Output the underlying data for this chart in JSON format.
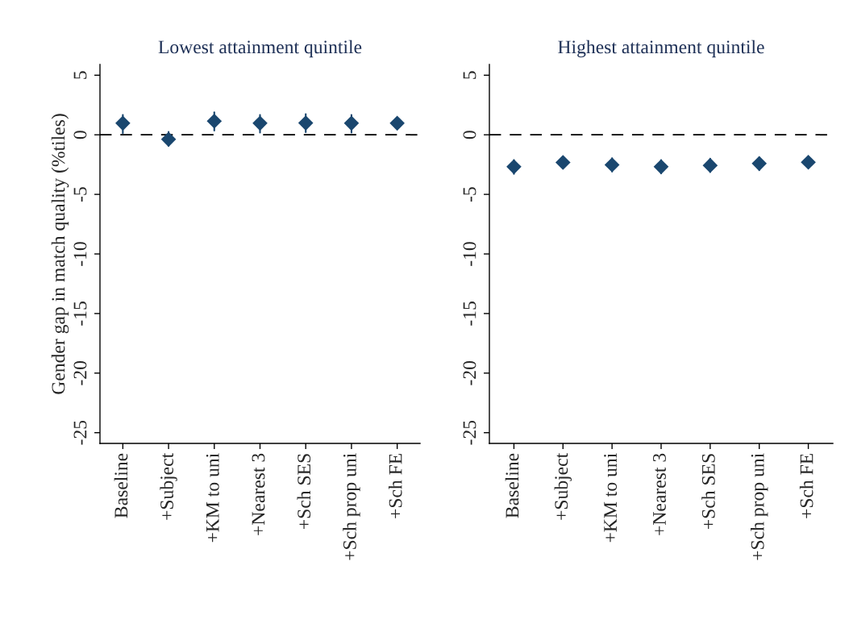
{
  "chart_data": [
    {
      "type": "scatter",
      "title": "Lowest attainment quintile",
      "ylabel": "Gender gap in match quality (%tiles)",
      "categories": [
        "Baseline",
        "+Subject",
        "+KM to uni",
        "+Nearest 3",
        "+Sch SES",
        "+Sch prop uni",
        "+Sch FE"
      ],
      "series": [
        {
          "color": "#1a476f",
          "values": [
            0.97,
            -0.38,
            1.15,
            0.97,
            0.99,
            0.97,
            0.97
          ],
          "errors": [
            [
              0.14,
              1.67
            ],
            [
              -0.93,
              0.25
            ],
            [
              0.36,
              1.89
            ],
            [
              0.18,
              1.67
            ],
            [
              0.22,
              1.74
            ],
            [
              0.18,
              1.67
            ],
            [
              0.7,
              1.25
            ]
          ]
        }
      ],
      "ylim": [
        -25.9,
        5.9
      ],
      "yticks": [
        -25,
        -20,
        -15,
        -10,
        -5,
        0,
        5
      ],
      "marker": "diamond",
      "grid": false,
      "legend": false,
      "ref_lines": [
        {
          "axis": "y",
          "value": 0,
          "color": "#000000",
          "line_style": "dashed"
        }
      ]
    },
    {
      "type": "scatter",
      "title": "Highest attainment quintile",
      "categories": [
        "Baseline",
        "+Subject",
        "+KM to uni",
        "+Nearest 3",
        "+Sch SES",
        "+Sch prop uni",
        "+Sch FE"
      ],
      "series": [
        {
          "color": "#1a476f",
          "values": [
            -2.68,
            -2.32,
            -2.52,
            -2.68,
            -2.57,
            -2.41,
            -2.3
          ],
          "errors": [
            [
              -3.29,
              -2.12
            ],
            [
              -2.55,
              -2.1
            ],
            [
              -3.09,
              -1.96
            ],
            [
              -3.24,
              -2.12
            ],
            [
              -3.13,
              -2.0
            ],
            [
              -2.97,
              -1.89
            ],
            [
              -2.5,
              -2.1
            ]
          ]
        }
      ],
      "ylim": [
        -25.9,
        5.9
      ],
      "yticks": [
        -25,
        -20,
        -15,
        -10,
        -5,
        0,
        5
      ],
      "marker": "diamond",
      "grid": false,
      "legend": false,
      "ref_lines": [
        {
          "axis": "y",
          "value": 0,
          "color": "#000000",
          "line_style": "dashed"
        }
      ]
    }
  ]
}
